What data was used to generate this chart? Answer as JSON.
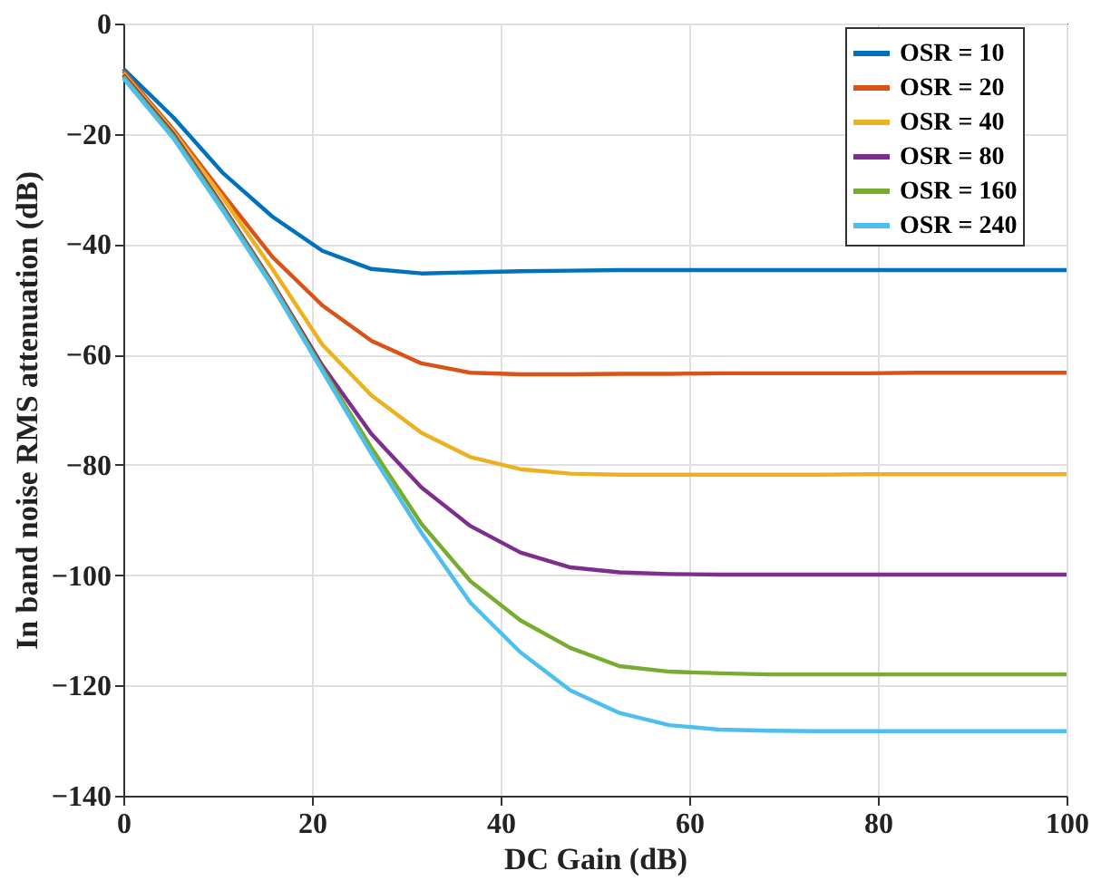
{
  "chart_data": {
    "type": "line",
    "xlabel": "DC Gain (dB)",
    "ylabel": "In band noise RMS attenuation (dB)",
    "x": [
      0,
      5.3,
      10.5,
      15.8,
      21.1,
      26.3,
      31.6,
      36.8,
      42.1,
      47.4,
      52.6,
      57.9,
      63.2,
      68.4,
      73.7,
      78.9,
      84.2,
      89.5,
      94.7,
      100
    ],
    "series": [
      {
        "name": "OSR = 10",
        "color": "#0072bd",
        "values": [
          -8.2,
          -17,
          -27,
          -35,
          -41.2,
          -44.5,
          -45.3,
          -45.1,
          -44.9,
          -44.8,
          -44.7,
          -44.7,
          -44.7,
          -44.7,
          -44.7,
          -44.7,
          -44.7,
          -44.7,
          -44.7,
          -44.7
        ]
      },
      {
        "name": "OSR = 20",
        "color": "#d95319",
        "values": [
          -8.6,
          -19.2,
          -30.8,
          -42.3,
          -51.1,
          -57.5,
          -61.6,
          -63.3,
          -63.6,
          -63.6,
          -63.5,
          -63.5,
          -63.4,
          -63.4,
          -63.4,
          -63.4,
          -63.3,
          -63.3,
          -63.3,
          -63.3
        ]
      },
      {
        "name": "OSR = 40",
        "color": "#edb120",
        "values": [
          -9,
          -19.6,
          -31.5,
          -44.5,
          -58.2,
          -67.4,
          -74.2,
          -78.6,
          -80.8,
          -81.6,
          -81.8,
          -81.8,
          -81.8,
          -81.8,
          -81.8,
          -81.7,
          -81.7,
          -81.7,
          -81.7,
          -81.7
        ]
      },
      {
        "name": "OSR = 80",
        "color": "#7e2f8e",
        "values": [
          -9.3,
          -20,
          -33,
          -47,
          -62,
          -74.4,
          -84.1,
          -91.1,
          -95.9,
          -98.6,
          -99.5,
          -99.8,
          -99.9,
          -99.9,
          -99.9,
          -99.9,
          -99.9,
          -99.9,
          -99.9,
          -99.9
        ]
      },
      {
        "name": "OSR = 160",
        "color": "#77ac30",
        "values": [
          -9.6,
          -20.4,
          -33.4,
          -47.3,
          -62.6,
          -76.9,
          -90.7,
          -101.1,
          -108.2,
          -113.2,
          -116.5,
          -117.5,
          -117.8,
          -118,
          -118,
          -118,
          -118,
          -118,
          -118,
          -118
        ]
      },
      {
        "name": "OSR = 240",
        "color": "#4dbeee",
        "values": [
          -9.9,
          -20.8,
          -33.8,
          -47.7,
          -63,
          -78,
          -92.3,
          -105,
          -114,
          -120.9,
          -125,
          -127.2,
          -128,
          -128.2,
          -128.3,
          -128.3,
          -128.3,
          -128.3,
          -128.3,
          -128.3
        ]
      }
    ],
    "xlim": [
      0,
      100
    ],
    "xticks": [
      0,
      20,
      40,
      60,
      80,
      100
    ],
    "ylim": [
      -140,
      0
    ],
    "yticks": [
      -140,
      -120,
      -100,
      -80,
      -60,
      -40,
      -20,
      0
    ],
    "grid": true,
    "legend": "top right",
    "marker": "none",
    "line_style": "solid"
  }
}
